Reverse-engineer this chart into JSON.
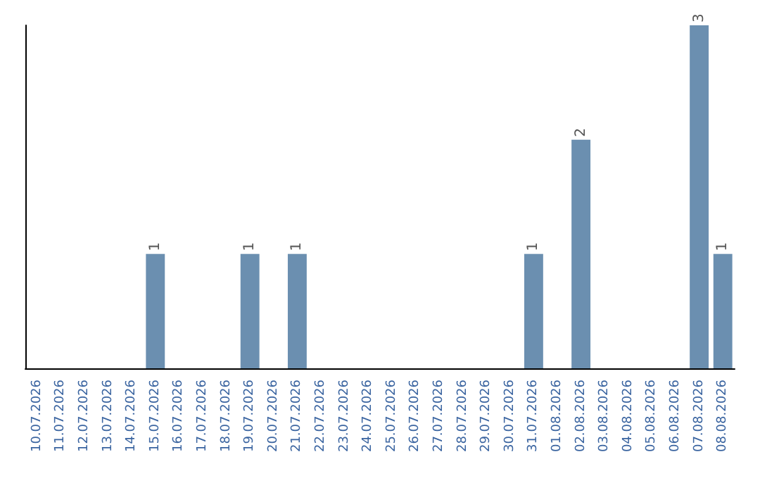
{
  "chart_data": {
    "type": "bar",
    "categories": [
      "10.07.2026",
      "11.07.2026",
      "12.07.2026",
      "13.07.2026",
      "14.07.2026",
      "15.07.2026",
      "16.07.2026",
      "17.07.2026",
      "18.07.2026",
      "19.07.2026",
      "20.07.2026",
      "21.07.2026",
      "22.07.2026",
      "23.07.2026",
      "24.07.2026",
      "25.07.2026",
      "26.07.2026",
      "27.07.2026",
      "28.07.2026",
      "29.07.2026",
      "30.07.2026",
      "31.07.2026",
      "01.08.2026",
      "02.08.2026",
      "03.08.2026",
      "04.08.2026",
      "05.08.2026",
      "06.08.2026",
      "07.08.2026",
      "08.08.2026"
    ],
    "values": [
      0,
      0,
      0,
      0,
      0,
      1,
      0,
      0,
      0,
      1,
      0,
      1,
      0,
      0,
      0,
      0,
      0,
      0,
      0,
      0,
      0,
      1,
      0,
      2,
      0,
      0,
      0,
      0,
      3,
      1
    ],
    "value_labels": [
      null,
      null,
      null,
      null,
      null,
      "1",
      null,
      null,
      null,
      "1",
      null,
      "1",
      null,
      null,
      null,
      null,
      null,
      null,
      null,
      null,
      null,
      "1",
      null,
      "2",
      null,
      null,
      null,
      null,
      "3",
      "1"
    ],
    "color": "#6b8fb0",
    "ylim": [
      0,
      3
    ],
    "tick_labels": "x"
  }
}
